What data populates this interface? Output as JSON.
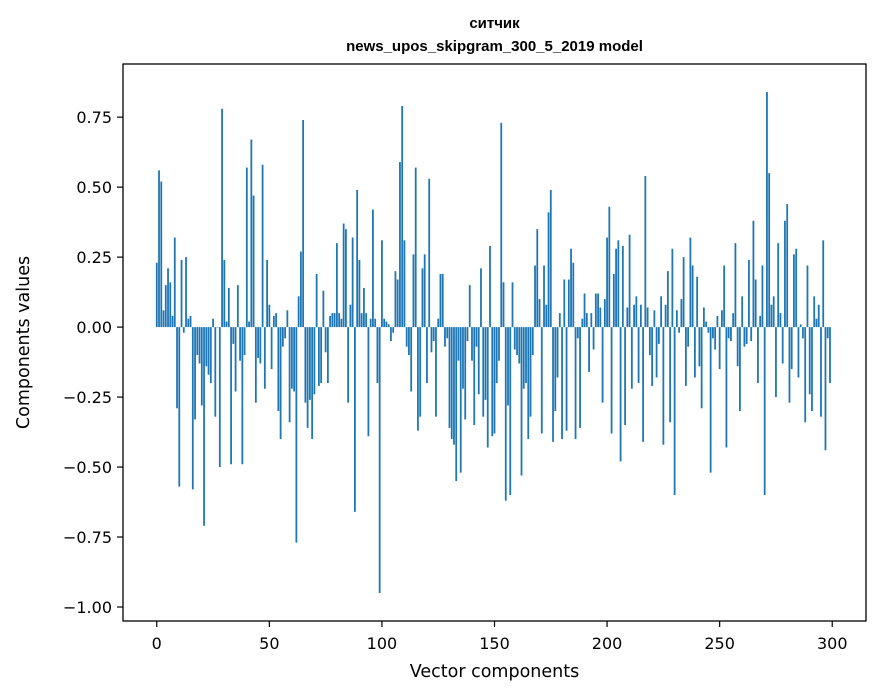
{
  "chart_data": {
    "type": "bar",
    "title": "ситчик",
    "subtitle": "news_upos_skipgram_300_5_2019 model",
    "xlabel": "Vector components",
    "ylabel": "Components values",
    "xlim": [
      -15,
      315
    ],
    "ylim": [
      -1.05,
      0.94
    ],
    "xticks": [
      0,
      50,
      100,
      150,
      200,
      250,
      300
    ],
    "yticks": [
      -1.0,
      -0.75,
      -0.5,
      -0.25,
      0.0,
      0.25,
      0.5,
      0.75
    ],
    "ytick_labels": [
      "−1.00",
      "−0.75",
      "−0.50",
      "−0.25",
      "0.00",
      "0.25",
      "0.50",
      "0.75"
    ],
    "grid": false,
    "bar_color": "#1f77b4",
    "values": [
      0.23,
      0.56,
      0.52,
      0.06,
      0.15,
      0.21,
      0.16,
      0.04,
      0.32,
      -0.29,
      -0.57,
      0.24,
      -0.02,
      0.25,
      0.03,
      0.04,
      -0.58,
      -0.33,
      -0.1,
      -0.13,
      -0.28,
      -0.71,
      -0.14,
      -0.17,
      -0.2,
      0.03,
      -0.32,
      0.0,
      -0.5,
      0.78,
      0.24,
      0.02,
      0.14,
      -0.49,
      -0.06,
      -0.23,
      0.15,
      -0.12,
      -0.49,
      -0.1,
      0.57,
      0.02,
      0.67,
      0.47,
      -0.27,
      -0.11,
      -0.13,
      0.58,
      -0.22,
      0.24,
      0.08,
      -0.15,
      0.04,
      0.05,
      -0.3,
      -0.4,
      -0.07,
      -0.04,
      0.06,
      -0.34,
      -0.22,
      -0.23,
      -0.77,
      0.11,
      0.27,
      0.74,
      -0.27,
      -0.36,
      -0.26,
      -0.4,
      -0.24,
      0.19,
      -0.21,
      -0.2,
      0.13,
      -0.09,
      -0.2,
      0.04,
      0.05,
      0.05,
      0.3,
      0.05,
      0.03,
      0.37,
      0.35,
      -0.27,
      0.08,
      0.32,
      -0.66,
      0.49,
      0.24,
      0.05,
      0.14,
      0.05,
      -0.39,
      0.03,
      0.42,
      0.03,
      -0.2,
      -0.95,
      0.31,
      0.03,
      0.02,
      0.01,
      -0.05,
      -0.02,
      0.2,
      0.17,
      0.59,
      0.79,
      0.31,
      -0.07,
      -0.1,
      -0.23,
      0.26,
      0.57,
      -0.37,
      -0.32,
      0.21,
      0.26,
      -0.2,
      0.53,
      -0.09,
      -0.05,
      -0.32,
      0.03,
      0.19,
      0.19,
      -0.07,
      -0.04,
      -0.36,
      -0.4,
      -0.42,
      -0.55,
      -0.12,
      -0.52,
      -0.22,
      -0.33,
      -0.05,
      0.15,
      -0.12,
      -0.35,
      -0.07,
      -0.24,
      0.21,
      -0.32,
      -0.26,
      -0.43,
      0.29,
      -0.39,
      -0.38,
      -0.2,
      -0.12,
      0.73,
      0.16,
      -0.62,
      -0.28,
      -0.6,
      0.16,
      -0.08,
      -0.1,
      -0.13,
      -0.53,
      -0.22,
      -0.2,
      -0.4,
      -0.32,
      -0.1,
      0.22,
      0.35,
      0.1,
      -0.38,
      0.22,
      0.08,
      0.41,
      0.49,
      -0.41,
      -0.3,
      -0.18,
      0.05,
      -0.4,
      0.17,
      -0.37,
      0.17,
      0.28,
      0.23,
      -0.4,
      -0.04,
      -0.36,
      0.03,
      0.12,
      0.05,
      -0.16,
      0.05,
      -0.08,
      0.12,
      0.12,
      0.07,
      -0.27,
      0.1,
      0.32,
      0.43,
      -0.38,
      0.19,
      0.28,
      0.31,
      -0.48,
      0.29,
      -0.35,
      0.07,
      0.33,
      -0.22,
      0.08,
      0.11,
      -0.2,
      0.08,
      -0.41,
      0.54,
      0.07,
      -0.1,
      -0.21,
      0.06,
      -0.18,
      -0.06,
      0.11,
      -0.42,
      0.08,
      0.2,
      -0.34,
      0.28,
      -0.6,
      0.06,
      -0.02,
      0.1,
      0.25,
      -0.21,
      -0.07,
      0.32,
      0.22,
      -0.18,
      0.18,
      -0.14,
      -0.29,
      0.07,
      0.02,
      -0.02,
      -0.52,
      -0.04,
      -0.08,
      0.04,
      -0.15,
      0.06,
      0.22,
      -0.43,
      -0.04,
      -0.05,
      0.05,
      0.3,
      -0.14,
      -0.3,
      0.11,
      -0.07,
      -0.06,
      0.24,
      -0.05,
      0.38,
      0.17,
      -0.2,
      0.04,
      0.22,
      -0.6,
      0.84,
      0.55,
      0.08,
      0.11,
      -0.25,
      0.3,
      0.05,
      -0.13,
      0.38,
      0.44,
      -0.27,
      -0.15,
      0.26,
      0.28,
      -0.18,
      0.01,
      -0.04,
      -0.34,
      0.22,
      -0.24,
      -0.3,
      0.11,
      0.03,
      0.08,
      -0.32,
      0.31,
      -0.44,
      -0.04,
      -0.2
    ]
  }
}
